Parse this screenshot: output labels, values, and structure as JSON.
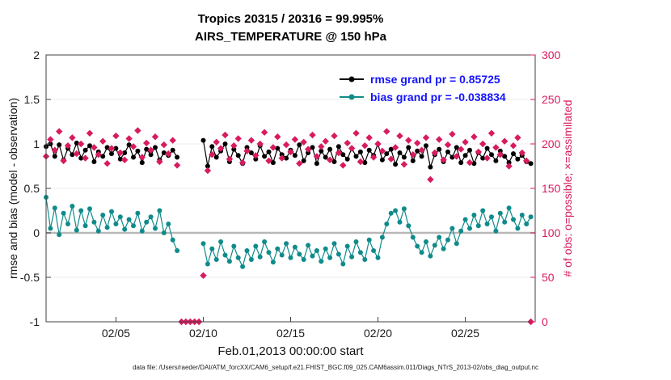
{
  "chart_data": {
    "type": "line",
    "title": "Tropics 20315 / 20316 = 99.995%",
    "subtitle": "AIRS_TEMPERATURE @ 150 hPa",
    "xlabel": "Feb.01,2013 00:00:00 start",
    "ylabel_left": "rmse and bias (model - observation)",
    "ylabel_right": "# of obs: o=possible; ×=assimilated",
    "x_range": [
      1,
      29
    ],
    "y_left_range": [
      -1,
      2
    ],
    "y_right_range": [
      0,
      300
    ],
    "x_ticks": {
      "values": [
        5,
        10,
        15,
        20,
        25
      ],
      "labels": [
        "02/05",
        "02/10",
        "02/15",
        "02/20",
        "02/25"
      ]
    },
    "y_left_ticks": {
      "values": [
        -1,
        -0.5,
        0,
        0.5,
        1,
        1.5,
        2
      ],
      "labels": [
        "-1",
        "-0.5",
        "0",
        "0.5",
        "1",
        "1.5",
        "2"
      ]
    },
    "y_right_ticks": {
      "values": [
        0,
        50,
        100,
        150,
        200,
        250,
        300
      ],
      "labels": [
        "0",
        "50",
        "100",
        "150",
        "200",
        "250",
        "300"
      ],
      "color": "#d81b60"
    },
    "gridline_color": "#ececec",
    "zero_line_color": "#b8b8b8",
    "x": {
      "start": 1,
      "step": 0.25,
      "count": 112,
      "unit": "day of Feb 2013"
    },
    "legend": {
      "text_color": "#1414ff",
      "entries": [
        {
          "label": "rmse grand pr = 0.85725",
          "color": "#000000"
        },
        {
          "label": "bias grand pr = -0.038834",
          "color": "#0f8b8b"
        }
      ]
    },
    "series": [
      {
        "name": "rmse",
        "axis": "left",
        "color": "#000000",
        "marker": "circle",
        "line": true,
        "values": [
          0.97,
          1.0,
          0.86,
          0.99,
          0.82,
          0.95,
          0.88,
          1.01,
          0.84,
          0.93,
          0.98,
          0.8,
          0.91,
          0.86,
          0.96,
          0.89,
          0.95,
          0.83,
          0.9,
          0.99,
          0.85,
          0.92,
          0.79,
          0.94,
          0.88,
          0.96,
          0.82,
          0.9,
          0.87,
          0.93,
          0.85,
          null,
          null,
          null,
          null,
          null,
          1.04,
          0.75,
          0.97,
          0.85,
          0.92,
          1.0,
          0.8,
          0.94,
          0.87,
          0.78,
          0.96,
          0.9,
          0.83,
          0.98,
          0.86,
          0.91,
          0.79,
          0.95,
          0.88,
          0.84,
          0.93,
          0.87,
          0.99,
          0.81,
          0.9,
          0.96,
          0.78,
          0.92,
          0.85,
          0.94,
          0.8,
          0.97,
          0.88,
          0.83,
          0.95,
          0.86,
          0.91,
          0.79,
          0.93,
          0.87,
          1.0,
          0.82,
          0.89,
          0.94,
          0.77,
          0.9,
          0.85,
          0.96,
          0.81,
          0.92,
          0.86,
          0.98,
          0.74,
          0.88,
          0.94,
          0.8,
          0.91,
          0.85,
          0.96,
          0.79,
          0.87,
          0.93,
          0.78,
          0.9,
          0.84,
          0.95,
          0.88,
          0.81,
          0.92,
          0.86,
          0.79,
          0.89,
          0.83,
          0.87,
          0.8,
          0.78
        ]
      },
      {
        "name": "bias",
        "axis": "left",
        "color": "#0f8b8b",
        "marker": "circle",
        "line": true,
        "values": [
          0.4,
          0.05,
          0.28,
          -0.02,
          0.22,
          0.1,
          0.3,
          0.03,
          0.25,
          0.08,
          0.27,
          0.12,
          0.02,
          0.2,
          0.06,
          0.24,
          0.1,
          0.18,
          0.04,
          0.15,
          0.08,
          0.22,
          0.02,
          0.12,
          0.18,
          0.05,
          0.25,
          0.0,
          0.1,
          -0.08,
          -0.2,
          null,
          null,
          null,
          null,
          null,
          -0.12,
          -0.35,
          -0.18,
          -0.3,
          -0.1,
          -0.25,
          -0.32,
          -0.15,
          -0.28,
          -0.38,
          -0.2,
          -0.3,
          -0.15,
          -0.27,
          -0.1,
          -0.22,
          -0.33,
          -0.18,
          -0.25,
          -0.12,
          -0.28,
          -0.16,
          -0.24,
          -0.3,
          -0.14,
          -0.26,
          -0.2,
          -0.32,
          -0.18,
          -0.28,
          -0.12,
          -0.24,
          -0.35,
          -0.15,
          -0.27,
          -0.1,
          -0.22,
          -0.3,
          -0.08,
          -0.2,
          -0.28,
          -0.05,
          0.1,
          0.22,
          0.25,
          0.12,
          0.27,
          0.08,
          -0.05,
          -0.15,
          -0.22,
          -0.1,
          -0.26,
          -0.14,
          -0.05,
          -0.18,
          -0.08,
          0.05,
          -0.12,
          0.02,
          0.15,
          0.05,
          0.2,
          0.08,
          0.25,
          0.1,
          0.18,
          0.02,
          0.22,
          0.12,
          0.28,
          0.15,
          0.05,
          0.2,
          0.1,
          0.18
        ]
      },
      {
        "name": "obs_count_possible",
        "axis": "right",
        "color": "#d81b60",
        "marker": "diamond",
        "line": false,
        "values": [
          186,
          205,
          193,
          214,
          181,
          198,
          207,
          189,
          200,
          184,
          212,
          196,
          188,
          203,
          178,
          195,
          209,
          190,
          182,
          206,
          197,
          215,
          185,
          201,
          193,
          208,
          180,
          199,
          189,
          204,
          176,
          0,
          0,
          0,
          0,
          0,
          52,
          170,
          188,
          202,
          195,
          210,
          183,
          198,
          206,
          179,
          192,
          204,
          187,
          200,
          213,
          181,
          196,
          208,
          184,
          199,
          191,
          205,
          178,
          202,
          194,
          210,
          186,
          197,
          203,
          182,
          209,
          190,
          176,
          201,
          195,
          212,
          180,
          198,
          207,
          185,
          200,
          192,
          214,
          183,
          196,
          209,
          177,
          204,
          188,
          201,
          193,
          207,
          160,
          190,
          205,
          182,
          199,
          211,
          186,
          194,
          202,
          179,
          208,
          191,
          200,
          184,
          212,
          196,
          188,
          203,
          175,
          198,
          207,
          190,
          181,
          0
        ]
      }
    ]
  },
  "footer": {
    "text": "data file: /Users/raeder/DAI/ATM_forcXX/CAM6_setup/f.e21.FHIST_BGC.f09_025.CAM6assim.011/Diags_NTrS_2013-02/obs_diag_output.nc"
  }
}
